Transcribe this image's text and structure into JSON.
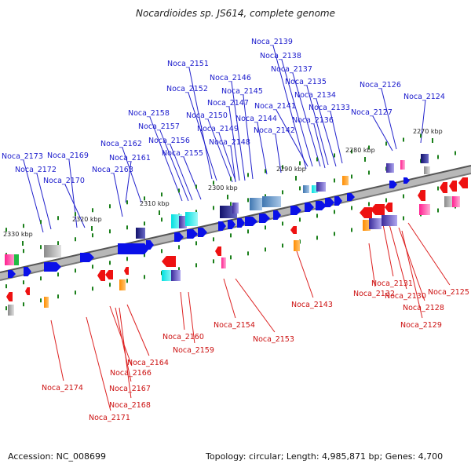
{
  "header": {
    "title": "Nocardioides sp. JS614, complete genome"
  },
  "footer": {
    "accession": "Accession: NC_008699",
    "topology": "Topology: circular; Length: 4,985,871 bp; Genes: 4,700"
  },
  "colors": {
    "top_label": "#1a1acc",
    "bottom_label": "#cc1111",
    "top_line": "#2222cc",
    "bottom_line": "#dd2222",
    "backbone": "#666666",
    "forward_gene": "#0a10e8",
    "reverse_gene": "#ee1111",
    "tick": "#1a7f1a"
  },
  "ruler": [
    "2270 kbp",
    "2280 kbp",
    "2290 kbp",
    "2300 kbp",
    "2310 kbp",
    "2320 kbp",
    "2330 kbp"
  ],
  "top_genes": [
    "Noca_2139",
    "Noca_2138",
    "Noca_2137",
    "Noca_2151",
    "Noca_2135",
    "Noca_2146",
    "Noca_2152",
    "Noca_2145",
    "Noca_2126",
    "Noca_2134",
    "Noca_2124",
    "Noca_2147",
    "Noca_2133",
    "Noca_2141",
    "Noca_2158",
    "Noca_2150",
    "Noca_2127",
    "Noca_2144",
    "Noca_2136",
    "Noca_2157",
    "Noca_2149",
    "Noca_2142",
    "Noca_2156",
    "Noca_2148",
    "Noca_2162",
    "Noca_2155",
    "Noca_2173",
    "Noca_2169",
    "Noca_2161",
    "Noca_2172",
    "Noca_2163",
    "Noca_2170"
  ],
  "bottom_genes": [
    "Noca_2125",
    "Noca_2131",
    "Noca_2132",
    "Noca_2130",
    "Noca_2143",
    "Noca_2128",
    "Noca_2129",
    "Noca_2154",
    "Noca_2160",
    "Noca_2153",
    "Noca_2159",
    "Noca_2164",
    "Noca_2166",
    "Noca_2174",
    "Noca_2167",
    "Noca_2168",
    "Noca_2171"
  ]
}
